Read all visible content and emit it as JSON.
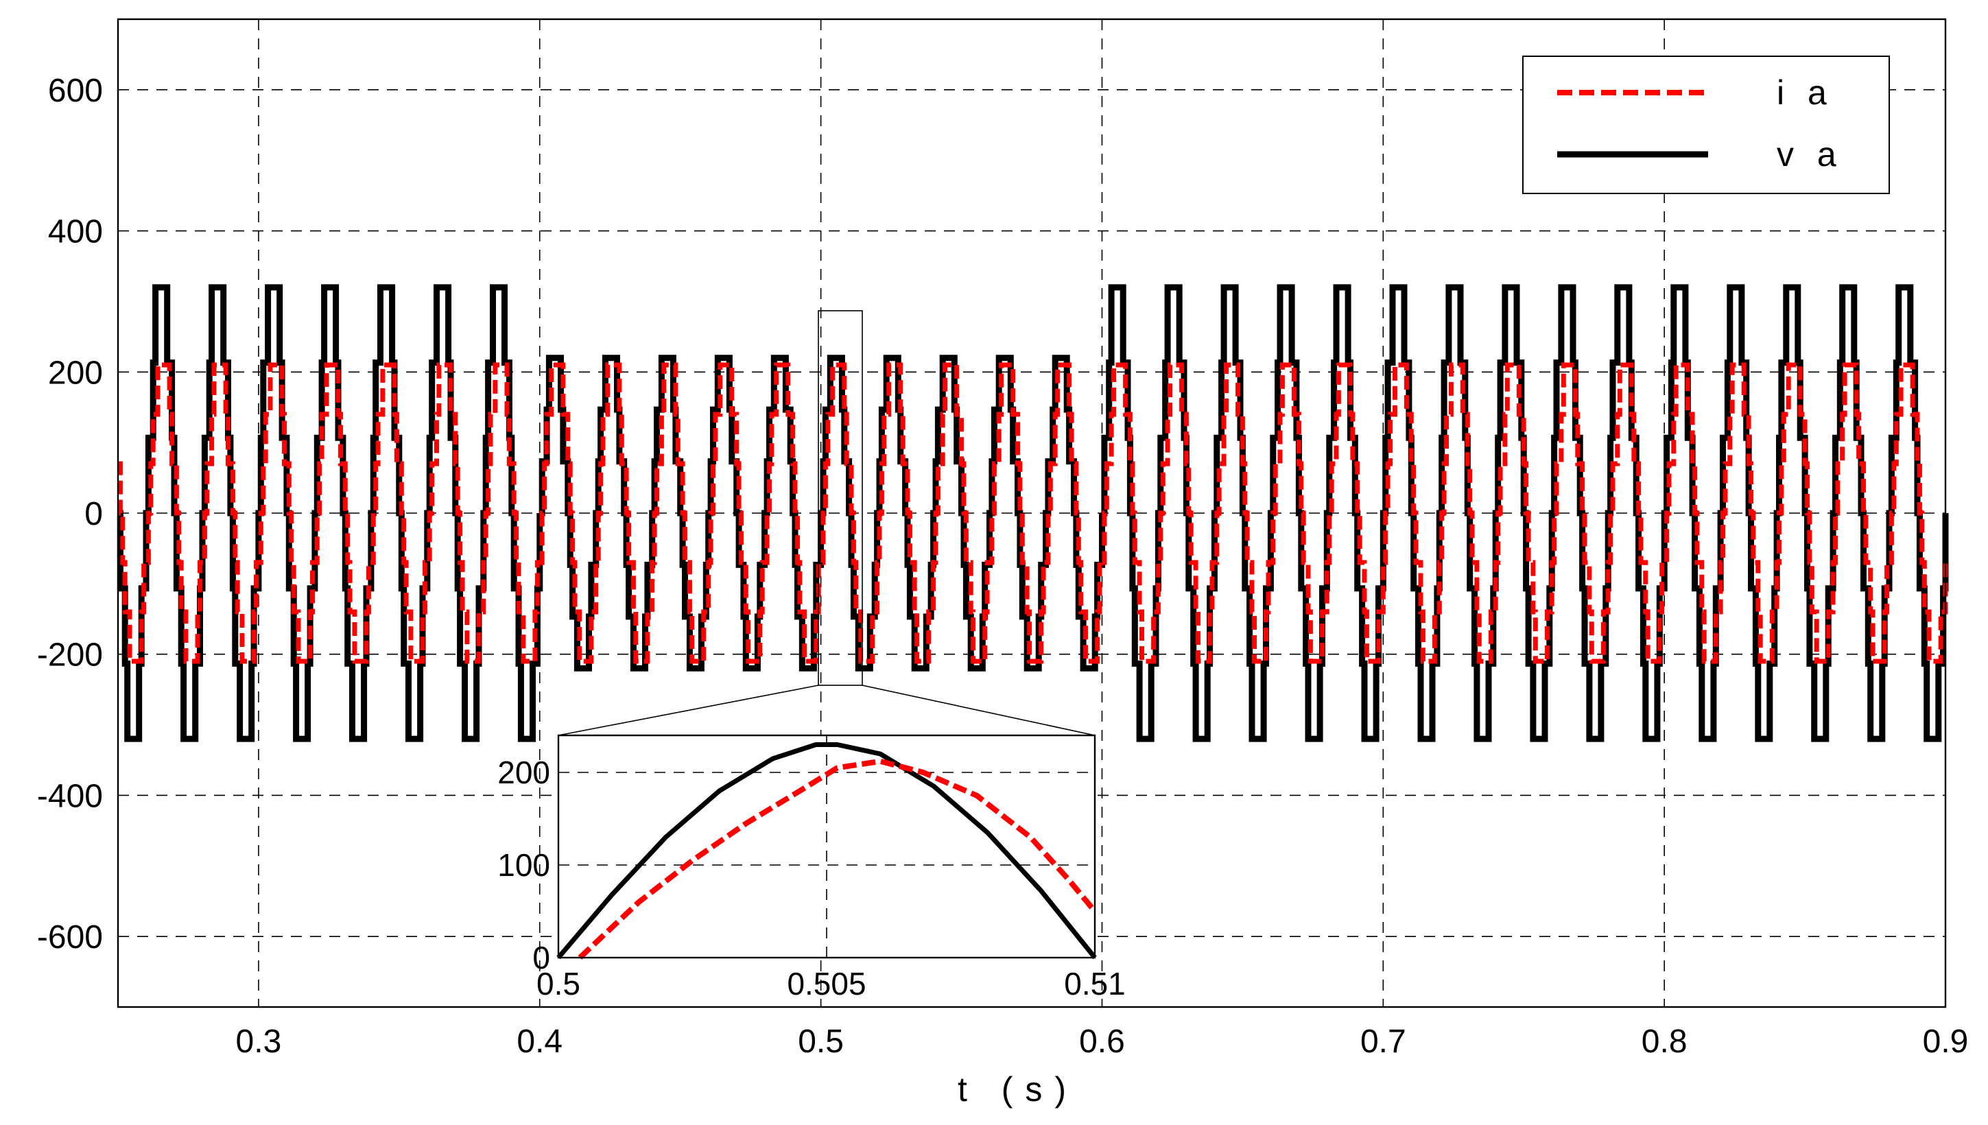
{
  "chart_data": {
    "type": "line",
    "xlabel": "t (s)",
    "ylabel": "",
    "xlim": [
      0.25,
      0.9
    ],
    "ylim": [
      -700,
      700
    ],
    "xticks": [
      "0.3",
      "0.4",
      "0.5",
      "0.6",
      "0.7",
      "0.8",
      "0.9"
    ],
    "yticks": [
      "600",
      "400",
      "200",
      "0",
      "-200",
      "-400",
      "-600"
    ],
    "grid": true,
    "legend": "top-right",
    "frequency_hz": 50,
    "steps_per_cycle": 24,
    "series": [
      {
        "name": "i a",
        "color": "#ff0000",
        "style": "dashed",
        "segments": [
          {
            "t_start": 0.25,
            "t_end": 0.4,
            "amplitude": 210,
            "phase_lag_deg": 15
          },
          {
            "t_start": 0.4,
            "t_end": 0.6,
            "amplitude": 210,
            "phase_lag_deg": 15
          },
          {
            "t_start": 0.6,
            "t_end": 0.9,
            "amplitude": 210,
            "phase_lag_deg": 15
          }
        ]
      },
      {
        "name": "v a",
        "color": "#000000",
        "style": "solid",
        "segments": [
          {
            "t_start": 0.25,
            "t_end": 0.4,
            "amplitude": 320,
            "phase_lag_deg": 0
          },
          {
            "t_start": 0.4,
            "t_end": 0.6,
            "amplitude": 220,
            "phase_lag_deg": 0
          },
          {
            "t_start": 0.6,
            "t_end": 0.9,
            "amplitude": 320,
            "phase_lag_deg": 0
          }
        ]
      }
    ],
    "inset": {
      "xlim": [
        0.5,
        0.51
      ],
      "ylim": [
        0,
        240
      ],
      "xticks": [
        "0.5",
        "0.505",
        "0.51"
      ],
      "yticks": [
        "200",
        "100",
        "0"
      ],
      "series": [
        {
          "name": "i a",
          "t": [
            0.5004,
            0.5015,
            0.5025,
            0.5035,
            0.5045,
            0.5052,
            0.506,
            0.5068,
            0.5078,
            0.5088,
            0.5095,
            0.51
          ],
          "values": [
            0,
            60,
            105,
            145,
            180,
            205,
            212,
            200,
            175,
            130,
            85,
            50
          ]
        },
        {
          "name": "v a",
          "t": [
            0.5,
            0.501,
            0.502,
            0.503,
            0.504,
            0.5048,
            0.5052,
            0.506,
            0.507,
            0.508,
            0.509,
            0.51
          ],
          "values": [
            0,
            68,
            130,
            180,
            215,
            230,
            230,
            220,
            185,
            135,
            72,
            0
          ]
        }
      ]
    }
  }
}
